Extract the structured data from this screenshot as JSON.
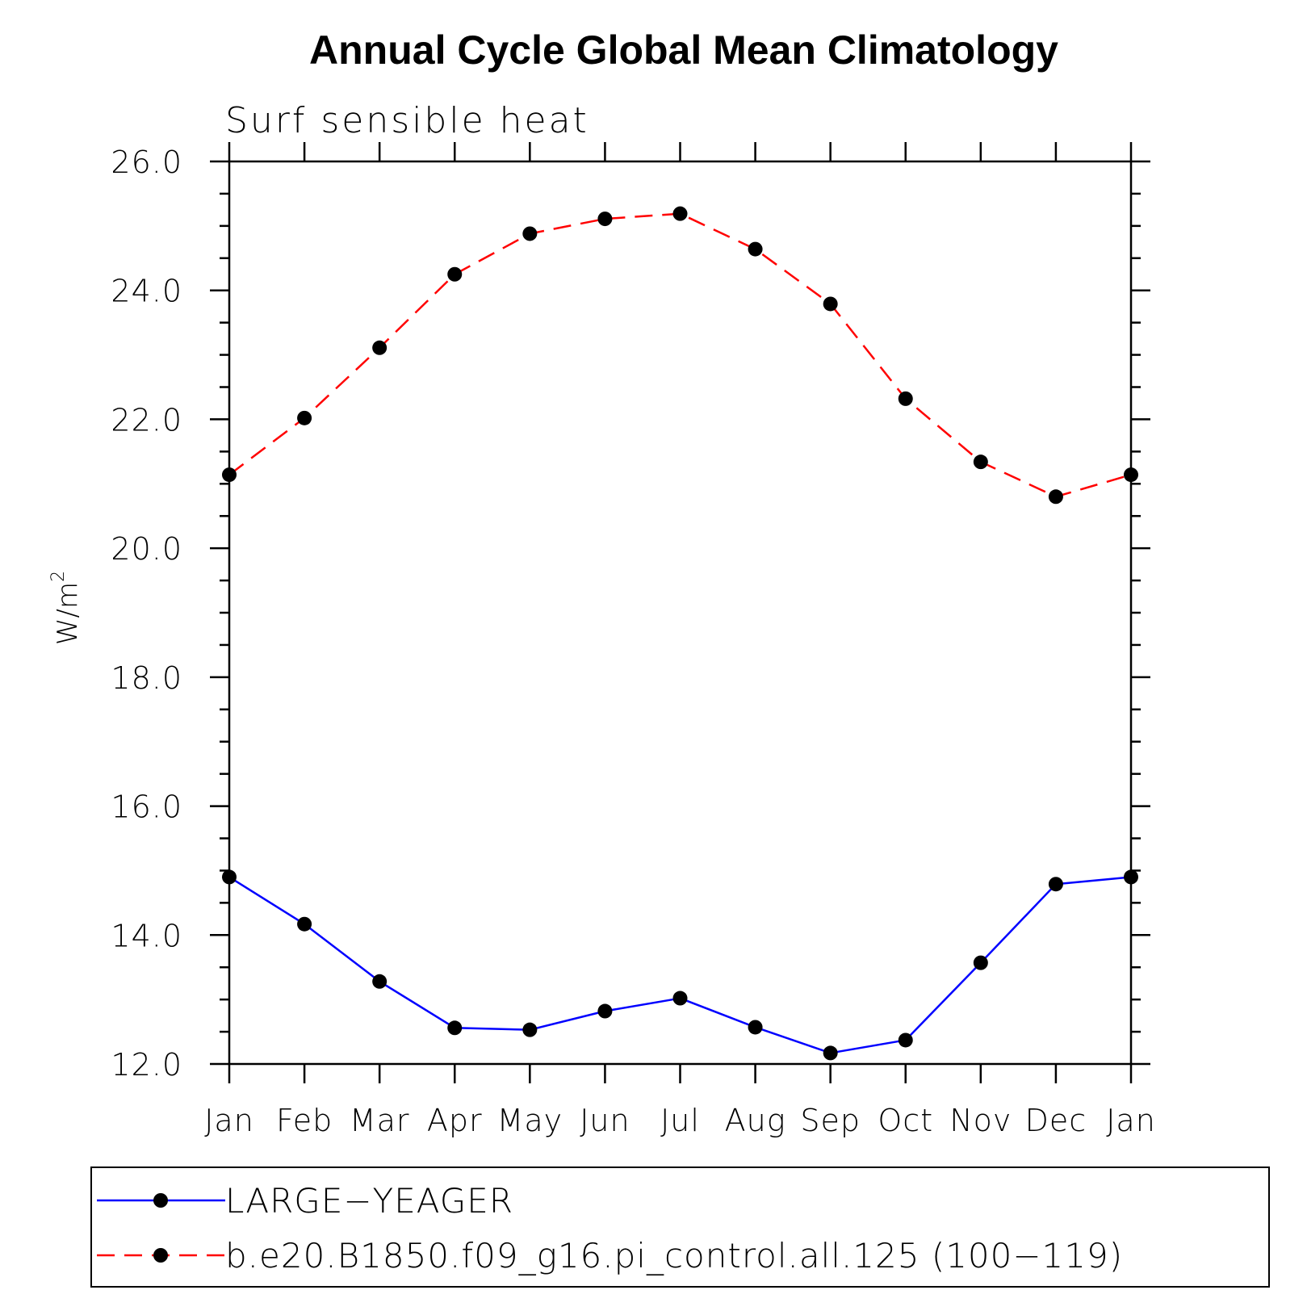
{
  "chart_data": {
    "type": "line",
    "title": "Annual Cycle Global Mean Climatology",
    "subtitle": "Surf sensible heat",
    "ylabel": "W/m",
    "ylabel_superscript": "2",
    "ylim": [
      12.0,
      26.0
    ],
    "yticks": [
      "12.0",
      "14.0",
      "16.0",
      "18.0",
      "20.0",
      "22.0",
      "24.0",
      "26.0"
    ],
    "categories": [
      "Jan",
      "Feb",
      "Mar",
      "Apr",
      "May",
      "Jun",
      "Jul",
      "Aug",
      "Sep",
      "Oct",
      "Nov",
      "Dec",
      "Jan"
    ],
    "legend_position": "bottom",
    "series": [
      {
        "name": "LARGE−YEAGER",
        "color": "#0000ff",
        "line_style": "solid",
        "marker": "filled-circle",
        "values": [
          14.9,
          14.17,
          13.28,
          12.56,
          12.53,
          12.82,
          13.02,
          12.57,
          12.17,
          12.37,
          13.57,
          14.79,
          14.9
        ]
      },
      {
        "name": "b.e20.B1850.f09_g16.pi_control.all.125 (100−119)",
        "color": "#ff0000",
        "line_style": "dashed",
        "marker": "filled-circle",
        "values": [
          21.14,
          22.02,
          23.11,
          24.25,
          24.88,
          25.11,
          25.19,
          24.64,
          23.79,
          22.32,
          21.34,
          20.8,
          21.14
        ]
      }
    ]
  }
}
